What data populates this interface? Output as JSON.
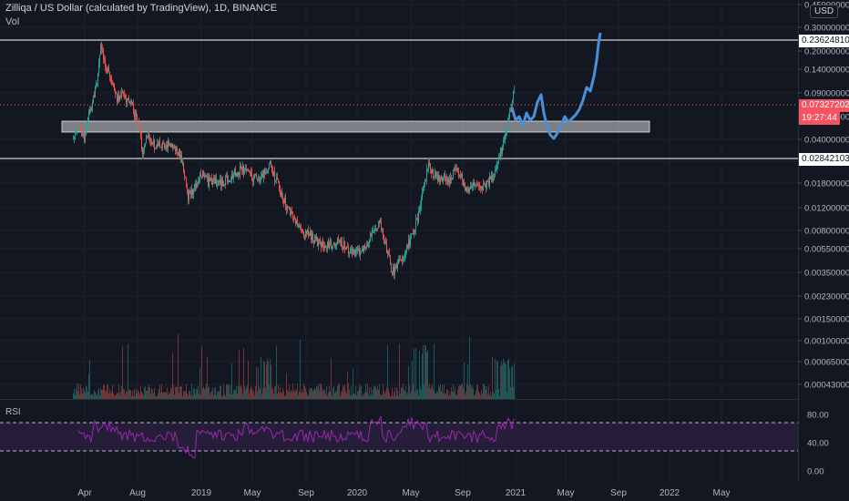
{
  "header": {
    "title": "Zilliqa / US Dollar (calculated by TradingView), 1D, BINANCE",
    "volume_label": "Vol",
    "rsi_label": "RSI",
    "currency": "USD"
  },
  "price_axis": {
    "ticks": [
      "0.45000000",
      "0.30000000",
      "0.20000000",
      "0.14000000",
      "0.09000000",
      "0.06000000",
      "0.04000000",
      "0.02800000",
      "0.01800000",
      "0.01200000",
      "0.00800000",
      "0.00550000",
      "0.00350000",
      "0.00230000",
      "0.00150000",
      "0.00100000",
      "0.00065000",
      "0.00043000"
    ],
    "tag_top": "0.23624810",
    "tag_current": "0.07327202",
    "countdown": "19:27:44",
    "tag_bottom": "0.02842103"
  },
  "rsi_axis": {
    "ticks": [
      "80.00",
      "40.00",
      "0.00"
    ],
    "upper": 70,
    "lower": 30
  },
  "time_axis": {
    "labels": [
      "Apr",
      "Aug",
      "2019",
      "May",
      "Sep",
      "2020",
      "May",
      "Sep",
      "2021",
      "May",
      "Sep",
      "2022",
      "May"
    ]
  },
  "colors": {
    "background": "#131722",
    "up": "#26a69a",
    "down": "#ef5350",
    "projection": "#4a90d9",
    "rsi_line": "#9c27b0",
    "rsi_band": "#2a1e3d",
    "zone": "#ffffff"
  }
}
